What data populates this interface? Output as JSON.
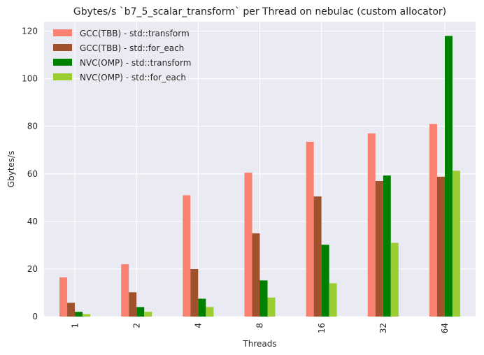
{
  "chart_data": {
    "type": "bar",
    "title": "Gbytes/s `b7_5_scalar_transform` per Thread on nebulac (custom allocator)",
    "xlabel": "Threads",
    "ylabel": "Gbytes/s",
    "categories": [
      "1",
      "2",
      "4",
      "8",
      "16",
      "32",
      "64"
    ],
    "ylim": [
      0,
      124
    ],
    "yticks": [
      0,
      20,
      40,
      60,
      80,
      100,
      120
    ],
    "grid": true,
    "legend_position": "top-left",
    "series": [
      {
        "name": "GCC(TBB) - std::transform",
        "color": "#fa8072",
        "values": [
          16.5,
          22,
          51,
          60.5,
          73.5,
          77,
          81
        ]
      },
      {
        "name": "GCC(TBB) - std::for_each",
        "color": "#a0522d",
        "values": [
          5.8,
          10.2,
          20,
          35,
          50.5,
          57,
          58.8
        ]
      },
      {
        "name": "NVC(OMP) - std::transform",
        "color": "#008000",
        "values": [
          2,
          4,
          7.5,
          15.2,
          30.2,
          59.3,
          118
        ]
      },
      {
        "name": "NVC(OMP) - std::for_each",
        "color": "#9acd32",
        "values": [
          1,
          2,
          4,
          8,
          14,
          31,
          61.3
        ]
      }
    ]
  }
}
